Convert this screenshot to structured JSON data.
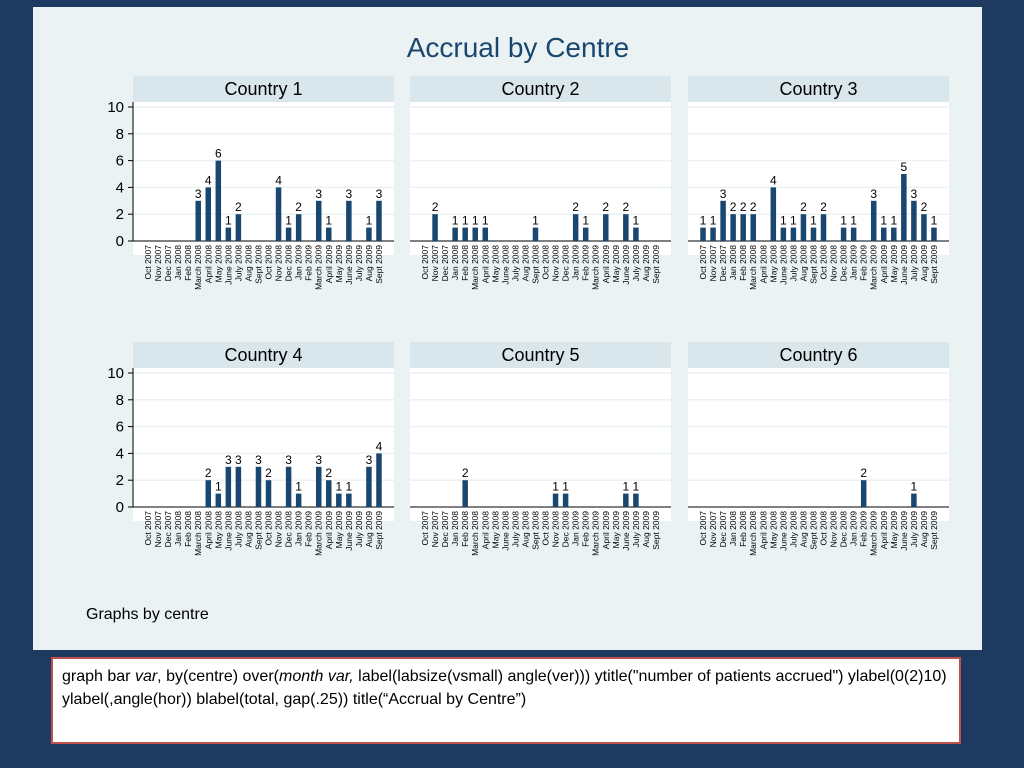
{
  "chart_title": "Accrual by Centre",
  "note": "Graphs by centre",
  "code": {
    "t1": "graph bar ",
    "i1": "var",
    "t2": ", by(centre) over(",
    "i2": "month var,",
    "t3": " label(labsize(vsmall) angle(ver)))  ytitle(\"number of patients accrued\") ylabel(0(2)10) ylabel(,angle(hor)) blabel(total, gap(.25)) title(“Accrual by Centre”)"
  },
  "colors": {
    "bar": "#1a476f",
    "panel_header": "#d9e6eb",
    "plot_bg": "#ffffff",
    "outer_bg": "#eaf2f3",
    "slide_bg": "#1f3a60",
    "grid": "#eaf2f3",
    "code_border": "#c0504d",
    "title": "#1a476f"
  },
  "chart_data": {
    "type": "bar",
    "title": "Accrual by Centre",
    "ylim": [
      0,
      10
    ],
    "yticks": [
      "0",
      "2",
      "4",
      "6",
      "8",
      "10"
    ],
    "grid": true,
    "panels": [
      {
        "name": "Country 1",
        "categories": [
          "Oct 2007",
          "Nov 2007",
          "Dec 2007",
          "Jan 2008",
          "Feb 2008",
          "March 2008",
          "April 2008",
          "May 2008",
          "June 2008",
          "July 2008",
          "Aug 2008",
          "Sept 2008",
          "Oct 2008",
          "Nov 2008",
          "Dec 2008",
          "Jan 2009",
          "Feb 2009",
          "March 2009",
          "April 2009",
          "May 2009",
          "June 2009",
          "July 2009",
          "Aug 2009",
          "Sept 2009"
        ],
        "values": [
          null,
          null,
          null,
          null,
          null,
          3,
          4,
          6,
          1,
          2,
          null,
          null,
          null,
          4,
          1,
          2,
          null,
          3,
          1,
          null,
          3,
          null,
          1,
          3
        ]
      },
      {
        "name": "Country 2",
        "categories": [
          "Oct 2007",
          "Nov 2007",
          "Dec 2007",
          "Jan 2008",
          "Feb 2008",
          "March 2008",
          "April 2008",
          "May 2008",
          "June 2008",
          "July 2008",
          "Aug 2008",
          "Sept 2008",
          "Oct 2008",
          "Nov 2008",
          "Dec 2008",
          "Jan 2009",
          "Feb 2009",
          "March 2009",
          "April 2009",
          "May 2009",
          "June 2009",
          "July 2009",
          "Aug 2009",
          "Sept 2009"
        ],
        "values": [
          null,
          2,
          null,
          1,
          1,
          1,
          1,
          null,
          null,
          null,
          null,
          1,
          null,
          null,
          null,
          2,
          1,
          null,
          2,
          null,
          2,
          1,
          null,
          null
        ]
      },
      {
        "name": "Country 3",
        "categories": [
          "Oct 2007",
          "Nov 2007",
          "Dec 2007",
          "Jan 2008",
          "Feb 2008",
          "March 2008",
          "April 2008",
          "May 2008",
          "June 2008",
          "July 2008",
          "Aug 2008",
          "Sept 2008",
          "Oct 2008",
          "Nov 2008",
          "Dec 2008",
          "Jan 2009",
          "Feb 2009",
          "March 2009",
          "April 2009",
          "May 2009",
          "June 2009",
          "July 2009",
          "Aug 2009",
          "Sept 2009"
        ],
        "values": [
          1,
          1,
          3,
          2,
          2,
          2,
          null,
          4,
          1,
          1,
          2,
          1,
          2,
          null,
          1,
          1,
          null,
          3,
          1,
          1,
          5,
          3,
          2,
          1
        ]
      },
      {
        "name": "Country 4",
        "categories": [
          "Oct 2007",
          "Nov 2007",
          "Dec 2007",
          "Jan 2008",
          "Feb 2008",
          "March 2008",
          "April 2008",
          "May 2008",
          "June 2008",
          "July 2008",
          "Aug 2008",
          "Sept 2008",
          "Oct 2008",
          "Nov 2008",
          "Dec 2008",
          "Jan 2009",
          "Feb 2009",
          "March 2009",
          "April 2009",
          "May 2009",
          "June 2009",
          "July 2009",
          "Aug 2009",
          "Sept 2009"
        ],
        "values": [
          null,
          null,
          null,
          null,
          null,
          null,
          2,
          1,
          3,
          3,
          null,
          3,
          2,
          null,
          3,
          1,
          null,
          3,
          2,
          1,
          1,
          null,
          3,
          4
        ]
      },
      {
        "name": "Country 5",
        "categories": [
          "Oct 2007",
          "Nov 2007",
          "Dec 2007",
          "Jan 2008",
          "Feb 2008",
          "March 2008",
          "April 2008",
          "May 2008",
          "June 2008",
          "July 2008",
          "Aug 2008",
          "Sept 2008",
          "Oct 2008",
          "Nov 2008",
          "Dec 2008",
          "Jan 2009",
          "Feb 2009",
          "March 2009",
          "April 2009",
          "May 2009",
          "June 2009",
          "July 2009",
          "Aug 2009",
          "Sept 2009"
        ],
        "values": [
          null,
          null,
          null,
          null,
          2,
          null,
          null,
          null,
          null,
          null,
          null,
          null,
          null,
          1,
          1,
          null,
          null,
          null,
          null,
          null,
          1,
          1,
          null,
          null
        ]
      },
      {
        "name": "Country 6",
        "categories": [
          "Oct 2007",
          "Nov 2007",
          "Dec 2007",
          "Jan 2008",
          "Feb 2008",
          "March 2008",
          "April 2008",
          "May 2008",
          "June 2008",
          "July 2008",
          "Aug 2008",
          "Sept 2008",
          "Oct 2008",
          "Nov 2008",
          "Dec 2008",
          "Jan 2009",
          "Feb 2009",
          "March 2009",
          "April 2009",
          "May 2009",
          "June 2009",
          "July 2009",
          "Aug 2009",
          "Sept 2009"
        ],
        "values": [
          null,
          null,
          null,
          null,
          null,
          null,
          null,
          null,
          null,
          null,
          null,
          null,
          null,
          null,
          null,
          null,
          2,
          null,
          null,
          null,
          null,
          1,
          null,
          null
        ]
      }
    ]
  }
}
